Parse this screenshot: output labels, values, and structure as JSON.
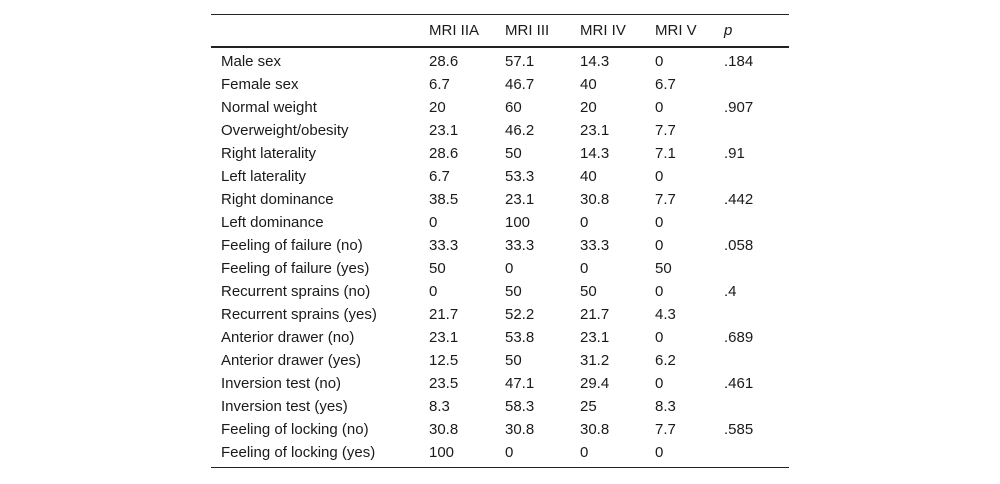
{
  "table": {
    "headers": [
      "",
      "MRI IIA",
      "MRI III",
      "MRI IV",
      "MRI V",
      "p"
    ],
    "rows": [
      [
        "Male sex",
        "28.6",
        "57.1",
        "14.3",
        "0",
        ".184"
      ],
      [
        "Female sex",
        "6.7",
        "46.7",
        "40",
        "6.7",
        ""
      ],
      [
        "Normal weight",
        "20",
        "60",
        "20",
        "0",
        ".907"
      ],
      [
        "Overweight/obesity",
        "23.1",
        "46.2",
        "23.1",
        "7.7",
        ""
      ],
      [
        "Right laterality",
        "28.6",
        "50",
        "14.3",
        "7.1",
        ".91"
      ],
      [
        "Left laterality",
        "6.7",
        "53.3",
        "40",
        "0",
        ""
      ],
      [
        "Right dominance",
        "38.5",
        "23.1",
        "30.8",
        "7.7",
        ".442"
      ],
      [
        "Left dominance",
        "0",
        "100",
        "0",
        "0",
        ""
      ],
      [
        "Feeling of failure (no)",
        "33.3",
        "33.3",
        "33.3",
        "0",
        ".058"
      ],
      [
        "Feeling of failure (yes)",
        "50",
        "0",
        "0",
        "50",
        ""
      ],
      [
        "Recurrent sprains (no)",
        "0",
        "50",
        "50",
        "0",
        ".4"
      ],
      [
        "Recurrent sprains (yes)",
        "21.7",
        "52.2",
        "21.7",
        "4.3",
        ""
      ],
      [
        "Anterior drawer (no)",
        "23.1",
        "53.8",
        "23.1",
        "0",
        ".689"
      ],
      [
        "Anterior drawer (yes)",
        "12.5",
        "50",
        "31.2",
        "6.2",
        ""
      ],
      [
        "Inversion test (no)",
        "23.5",
        "47.1",
        "29.4",
        "0",
        ".461"
      ],
      [
        "Inversion test (yes)",
        "8.3",
        "58.3",
        "25",
        "8.3",
        ""
      ],
      [
        "Feeling of locking (no)",
        "30.8",
        "30.8",
        "30.8",
        "7.7",
        ".585"
      ],
      [
        "Feeling of locking (yes)",
        "100",
        "0",
        "0",
        "0",
        ""
      ]
    ]
  }
}
